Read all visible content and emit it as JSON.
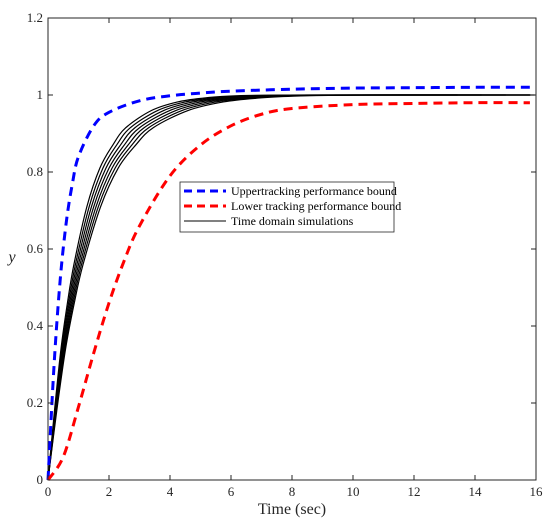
{
  "chart_data": {
    "type": "line",
    "title": "",
    "xlabel": "Time (sec)",
    "ylabel": "y",
    "xlim": [
      0,
      16
    ],
    "ylim": [
      0,
      1.2
    ],
    "xticks": [
      "0",
      "2",
      "4",
      "6",
      "8",
      "10",
      "12",
      "14",
      "16"
    ],
    "yticks": [
      "0",
      "0.2",
      "0.4",
      "0.6",
      "0.8",
      "1",
      "1.2"
    ],
    "grid": false,
    "legend_position": "center-right",
    "series": [
      {
        "name": "Uppertracking performance bound",
        "style": "dashed",
        "color": "#0000ff",
        "x": [
          0,
          0.2,
          0.4,
          0.6,
          0.8,
          1.0,
          1.5,
          2,
          3,
          4,
          5,
          6,
          8,
          10,
          12,
          14,
          15.8
        ],
        "y": [
          0,
          0.3,
          0.52,
          0.67,
          0.77,
          0.84,
          0.92,
          0.955,
          0.985,
          0.998,
          1.005,
          1.01,
          1.015,
          1.018,
          1.019,
          1.02,
          1.02
        ]
      },
      {
        "name": "Lower tracking performance bound",
        "style": "dashed",
        "color": "#ff0000",
        "x": [
          0,
          0.5,
          1,
          1.5,
          2,
          2.5,
          3,
          4,
          5,
          6,
          7,
          8,
          10,
          12,
          14,
          15.8
        ],
        "y": [
          0,
          0.06,
          0.19,
          0.33,
          0.46,
          0.57,
          0.66,
          0.79,
          0.87,
          0.92,
          0.95,
          0.965,
          0.975,
          0.978,
          0.98,
          0.98
        ]
      },
      {
        "name": "Time domain simulations",
        "style": "solid",
        "color": "#000000",
        "x": [
          0,
          0.25,
          0.5,
          0.75,
          1,
          1.5,
          2,
          2.5,
          3,
          4,
          5,
          6,
          7,
          8,
          10,
          12,
          14,
          15.8
        ],
        "y": [
          0,
          0.18,
          0.34,
          0.46,
          0.56,
          0.71,
          0.81,
          0.87,
          0.915,
          0.96,
          0.982,
          0.992,
          0.997,
          0.999,
          1.0,
          1.0,
          1.0,
          1.0
        ]
      }
    ]
  }
}
